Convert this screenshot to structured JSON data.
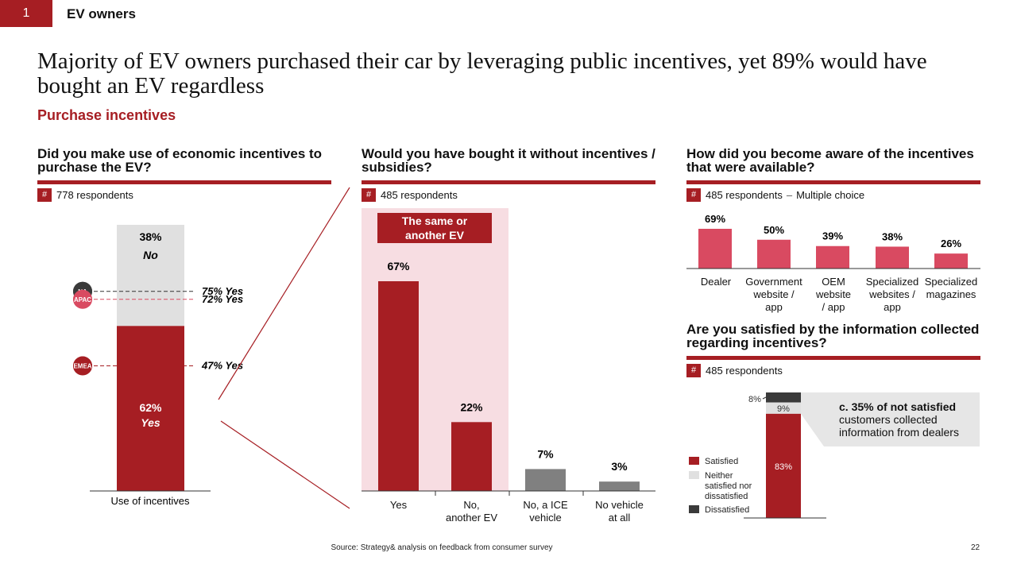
{
  "header": {
    "page_number": "1",
    "section": "EV owners"
  },
  "title": "Majority of EV owners purchased their car by leveraging public incentives, yet 89% would have bought an EV regardless",
  "subtitle": "Purchase incentives",
  "hash_symbol": "#",
  "footer": {
    "source": "Source: Strategy& analysis on feedback from consumer survey",
    "page": "22"
  },
  "colors": {
    "red": "#a61e23",
    "pink": "#d94a61",
    "light_pink": "#f7dde2",
    "grey": "#e0e0e0",
    "dark_grey": "#808080",
    "charcoal": "#3a3a3a"
  },
  "chart_data": [
    {
      "type": "bar",
      "title": "Did you make use of economic incentives to purchase the EV?",
      "respondents": "778 respondents",
      "categories": [
        "Use of incentives"
      ],
      "series": [
        {
          "name": "Yes",
          "label": "62%",
          "sub": "Yes",
          "values": [
            62
          ]
        },
        {
          "name": "No",
          "label": "38%",
          "sub": "No",
          "values": [
            38
          ]
        }
      ],
      "regions": [
        {
          "name": "NA",
          "label": "75% Yes",
          "value": 75,
          "color": "#3a3a3a"
        },
        {
          "name": "APAC",
          "label": "72% Yes",
          "value": 72,
          "color": "#d94a61"
        },
        {
          "name": "EMEA",
          "label": "47% Yes",
          "value": 47,
          "color": "#a61e23"
        }
      ]
    },
    {
      "type": "bar",
      "title": "Would you have bought it without incentives / subsidies?",
      "respondents": "485 respondents",
      "highlight_label": "The same or another EV",
      "categories": [
        "Yes",
        "No, another EV",
        "No, a ICE vehicle",
        "No vehicle at all"
      ],
      "category_lines": [
        [
          "Yes"
        ],
        [
          "No,",
          "another EV"
        ],
        [
          "No, a ICE",
          "vehicle"
        ],
        [
          "No vehicle",
          "at all"
        ]
      ],
      "values": [
        67,
        22,
        7,
        3
      ],
      "labels": [
        "67%",
        "22%",
        "7%",
        "3%"
      ],
      "colors": [
        "#a61e23",
        "#a61e23",
        "#808080",
        "#808080"
      ]
    },
    {
      "type": "bar",
      "title": "How did you become aware of the incentives that were available?",
      "respondents": "485 respondents",
      "respondents_suffix": "Multiple choice",
      "respondents_sep": "–",
      "categories": [
        "Dealer",
        "Government website / app",
        "OEM website / app",
        "Specialized websites / app",
        "Specialized magazines"
      ],
      "category_lines": [
        [
          "Dealer"
        ],
        [
          "Government",
          "website /",
          "app"
        ],
        [
          "OEM",
          "website",
          "/ app"
        ],
        [
          "Specialized",
          "websites /",
          "app"
        ],
        [
          "Specialized",
          "magazines"
        ]
      ],
      "values": [
        69,
        50,
        39,
        38,
        26
      ],
      "labels": [
        "69%",
        "50%",
        "39%",
        "38%",
        "26%"
      ]
    },
    {
      "type": "bar",
      "title": "Are you satisfied by the information collected regarding incentives?",
      "respondents": "485 respondents",
      "series": [
        {
          "name": "Satisfied",
          "value": 83,
          "label": "83%"
        },
        {
          "name": "Neither satisfied nor dissatisfied",
          "value": 9,
          "label": "9%"
        },
        {
          "name": "Dissatisfied",
          "value": 8,
          "label": "8%"
        }
      ],
      "legend_lines": [
        [
          "Satisfied"
        ],
        [
          "Neither",
          "satisfied nor",
          "dissatisfied"
        ],
        [
          "Dissatisfied"
        ]
      ],
      "note_bold": "c. 35% of not satisfied",
      "note": "customers collected information from dealers"
    }
  ]
}
